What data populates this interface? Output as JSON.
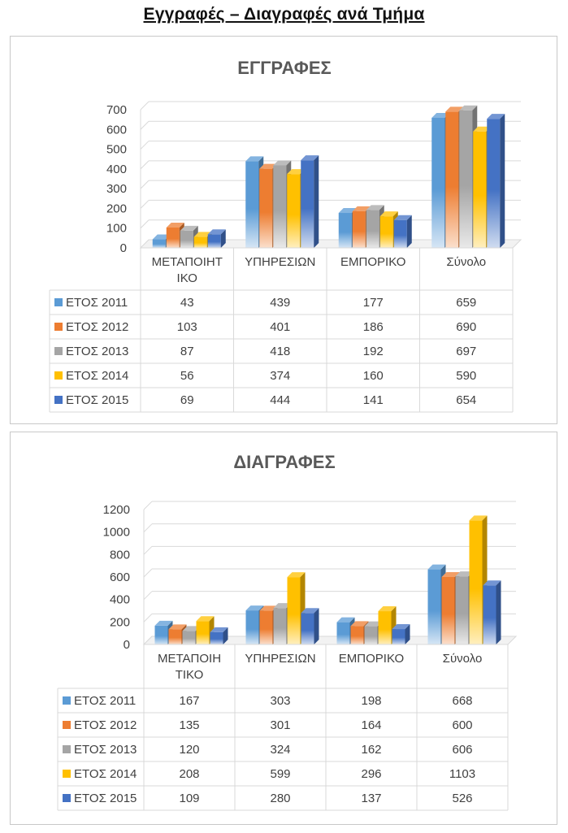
{
  "page": {
    "title": "Εγγραφές – Διαγραφές ανά Τμήμα"
  },
  "chart_data": [
    {
      "type": "bar",
      "title": "ΕΓΓΡΑΦΕΣ",
      "categories": [
        "ΜΕΤΑΠΟΙΗΤΙΚΟ",
        "ΥΠΗΡΕΣΙΩΝ",
        "ΕΜΠΟΡΙΚΟ",
        "Σύνολο"
      ],
      "category_lines": [
        [
          "ΜΕΤΑΠΟΙΗΤ",
          "ΙΚΟ"
        ],
        [
          "ΥΠΗΡΕΣΙΩΝ"
        ],
        [
          "ΕΜΠΟΡΙΚΟ"
        ],
        [
          "Σύνολο"
        ]
      ],
      "ylim": [
        0,
        700
      ],
      "yticks": [
        0,
        100,
        200,
        300,
        400,
        500,
        600,
        700
      ],
      "grid": true,
      "legend": "data-table",
      "series": [
        {
          "name": "ΕΤΟΣ 2011",
          "color": "#5b9bd5",
          "values": [
            43,
            439,
            177,
            659
          ]
        },
        {
          "name": "ΕΤΟΣ 2012",
          "color": "#ed7d31",
          "values": [
            103,
            401,
            186,
            690
          ]
        },
        {
          "name": "ΕΤΟΣ 2013",
          "color": "#a5a5a5",
          "values": [
            87,
            418,
            192,
            697
          ]
        },
        {
          "name": "ΕΤΟΣ 2014",
          "color": "#ffc000",
          "values": [
            56,
            374,
            160,
            590
          ]
        },
        {
          "name": "ΕΤΟΣ 2015",
          "color": "#4472c4",
          "values": [
            69,
            444,
            141,
            654
          ]
        }
      ]
    },
    {
      "type": "bar",
      "title": "ΔΙΑΓΡΑΦΕΣ",
      "categories": [
        "ΜΕΤΑΠΟΙΗΤΙΚΟ",
        "ΥΠΗΡΕΣΙΩΝ",
        "ΕΜΠΟΡΙΚΟ",
        "Σύνολο"
      ],
      "category_lines": [
        [
          "ΜΕΤΑΠΟΙΗ",
          "ΤΙΚΟ"
        ],
        [
          "ΥΠΗΡΕΣΙΩΝ"
        ],
        [
          "ΕΜΠΟΡΙΚΟ"
        ],
        [
          "Σύνολο"
        ]
      ],
      "ylim": [
        0,
        1200
      ],
      "yticks": [
        0,
        200,
        400,
        600,
        800,
        1000,
        1200
      ],
      "grid": true,
      "legend": "data-table",
      "series": [
        {
          "name": "ΕΤΟΣ 2011",
          "color": "#5b9bd5",
          "values": [
            167,
            303,
            198,
            668
          ]
        },
        {
          "name": "ΕΤΟΣ 2012",
          "color": "#ed7d31",
          "values": [
            135,
            301,
            164,
            600
          ]
        },
        {
          "name": "ΕΤΟΣ 2013",
          "color": "#a5a5a5",
          "values": [
            120,
            324,
            162,
            606
          ]
        },
        {
          "name": "ΕΤΟΣ 2014",
          "color": "#ffc000",
          "values": [
            208,
            599,
            296,
            1103
          ]
        },
        {
          "name": "ΕΤΟΣ 2015",
          "color": "#4472c4",
          "values": [
            109,
            280,
            137,
            526
          ]
        }
      ]
    }
  ]
}
